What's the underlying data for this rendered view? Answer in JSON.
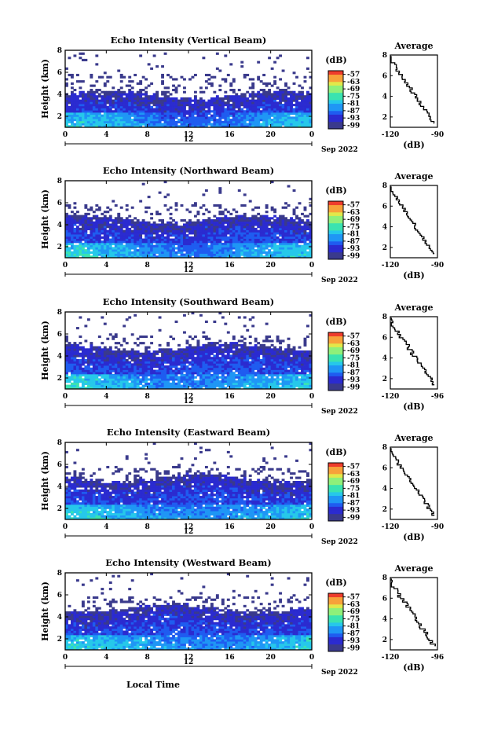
{
  "chart_data": [
    {
      "type": "heatmap",
      "title": "Echo Intensity (Vertical Beam)",
      "ylabel": "Height (km)",
      "y_ticks": [
        "2",
        "4",
        "6",
        "8"
      ],
      "ylim": [
        1,
        8
      ],
      "x_ticks": [
        "0",
        "4",
        "8",
        "12",
        "16",
        "20",
        "0"
      ],
      "xlim": [
        0,
        24
      ],
      "date_center": "12",
      "date_label": "Sep 2022",
      "echo_top_km": 4.0,
      "sparse_top_km": 5.8,
      "colorbar": {
        "unit": "(dB)",
        "ticks": [
          "-57",
          "-63",
          "-69",
          "-75",
          "-81",
          "-87",
          "-93",
          "-99"
        ],
        "range": [
          -102,
          -54
        ]
      },
      "profile": {
        "title": "Average",
        "xlabel": "(dB)",
        "x_ticks": [
          "-120",
          "-90"
        ],
        "y_ticks": [
          "2",
          "4",
          "6",
          "8"
        ],
        "xlim": [
          -120,
          -90
        ],
        "ylim": [
          1,
          8
        ]
      }
    },
    {
      "type": "heatmap",
      "title": "Echo Intensity (Northward Beam)",
      "ylabel": "Height (km)",
      "y_ticks": [
        "2",
        "4",
        "6",
        "8"
      ],
      "ylim": [
        1,
        8
      ],
      "x_ticks": [
        "0",
        "4",
        "8",
        "12",
        "16",
        "20",
        "0"
      ],
      "xlim": [
        0,
        24
      ],
      "date_center": "12",
      "date_label": "Sep 2022",
      "echo_top_km": 4.5,
      "sparse_top_km": 5.8,
      "colorbar": {
        "unit": "(dB)",
        "ticks": [
          "-57",
          "-63",
          "-69",
          "-75",
          "-81",
          "-87",
          "-93",
          "-99"
        ],
        "range": [
          -102,
          -54
        ]
      },
      "profile": {
        "title": "Average",
        "xlabel": "(dB)",
        "x_ticks": [
          "-120",
          "-90"
        ],
        "y_ticks": [
          "2",
          "4",
          "6",
          "8"
        ],
        "xlim": [
          -120,
          -90
        ],
        "ylim": [
          1,
          8
        ]
      }
    },
    {
      "type": "heatmap",
      "title": "Echo Intensity (Southward Beam)",
      "ylabel": "Height (km)",
      "y_ticks": [
        "2",
        "4",
        "6",
        "8"
      ],
      "ylim": [
        1,
        8
      ],
      "x_ticks": [
        "0",
        "4",
        "8",
        "12",
        "16",
        "20",
        "0"
      ],
      "xlim": [
        0,
        24
      ],
      "date_center": "12",
      "date_label": "Sep 2022",
      "echo_top_km": 4.8,
      "sparse_top_km": 5.8,
      "colorbar": {
        "unit": "(dB)",
        "ticks": [
          "-57",
          "-63",
          "-69",
          "-75",
          "-81",
          "-87",
          "-93",
          "-99"
        ],
        "range": [
          -102,
          -54
        ]
      },
      "profile": {
        "title": "Average",
        "xlabel": "(dB)",
        "x_ticks": [
          "-120",
          "-96"
        ],
        "y_ticks": [
          "2",
          "4",
          "6",
          "8"
        ],
        "xlim": [
          -120,
          -96
        ],
        "ylim": [
          1,
          8
        ]
      }
    },
    {
      "type": "heatmap",
      "title": "Echo Intensity (Eastward Beam)",
      "ylabel": "Height (km)",
      "y_ticks": [
        "2",
        "4",
        "6",
        "8"
      ],
      "ylim": [
        1,
        8
      ],
      "x_ticks": [
        "0",
        "4",
        "8",
        "12",
        "16",
        "20",
        "0"
      ],
      "xlim": [
        0,
        24
      ],
      "date_center": "12",
      "date_label": "Sep 2022",
      "echo_top_km": 4.8,
      "sparse_top_km": 5.8,
      "colorbar": {
        "unit": "(dB)",
        "ticks": [
          "-57",
          "-63",
          "-69",
          "-75",
          "-81",
          "-87",
          "-93",
          "-99"
        ],
        "range": [
          -102,
          -54
        ]
      },
      "profile": {
        "title": "Average",
        "xlabel": "(dB)",
        "x_ticks": [
          "-120",
          "-90"
        ],
        "y_ticks": [
          "2",
          "4",
          "6",
          "8"
        ],
        "xlim": [
          -120,
          -90
        ],
        "ylim": [
          1,
          8
        ]
      }
    },
    {
      "type": "heatmap",
      "title": "Echo Intensity (Westward Beam)",
      "ylabel": "Height (km)",
      "y_ticks": [
        "2",
        "4",
        "6",
        "8"
      ],
      "ylim": [
        1,
        8
      ],
      "x_ticks": [
        "0",
        "4",
        "8",
        "12",
        "16",
        "20",
        "0"
      ],
      "xlim": [
        0,
        24
      ],
      "date_center": "12",
      "date_label": "Sep 2022",
      "xlabel": "Local Time",
      "echo_top_km": 4.8,
      "sparse_top_km": 5.8,
      "colorbar": {
        "unit": "(dB)",
        "ticks": [
          "-57",
          "-63",
          "-69",
          "-75",
          "-81",
          "-87",
          "-93",
          "-99"
        ],
        "range": [
          -102,
          -54
        ]
      },
      "profile": {
        "title": "Average",
        "xlabel": "(dB)",
        "x_ticks": [
          "-120",
          "-96"
        ],
        "y_ticks": [
          "2",
          "4",
          "6",
          "8"
        ],
        "xlim": [
          -120,
          -96
        ],
        "ylim": [
          1,
          8
        ]
      }
    }
  ],
  "colormap": [
    "#3a3a8c",
    "#2b2bd0",
    "#1f5cf0",
    "#1f96f5",
    "#26c8ea",
    "#3ae3b0",
    "#8ff07a",
    "#e2e84a",
    "#f7a23a",
    "#ee3c2c"
  ]
}
